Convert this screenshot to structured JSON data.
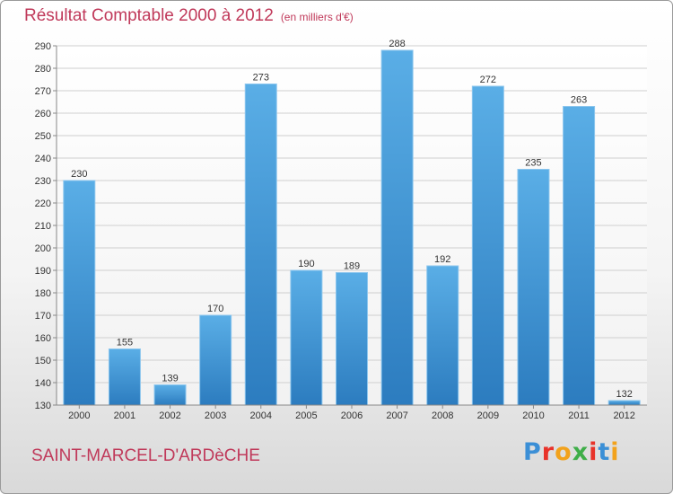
{
  "chart_data": {
    "type": "bar",
    "title": "Résultat Comptable 2000 à 2012",
    "subtitle": "(en milliers d'€)",
    "categories": [
      "2000",
      "2001",
      "2002",
      "2003",
      "2004",
      "2005",
      "2006",
      "2007",
      "2008",
      "2009",
      "2010",
      "2011",
      "2012"
    ],
    "values": [
      230,
      155,
      139,
      170,
      273,
      190,
      189,
      288,
      192,
      272,
      235,
      263,
      132
    ],
    "ylim": [
      130,
      290
    ],
    "yticks": [
      130,
      140,
      150,
      160,
      170,
      180,
      190,
      200,
      210,
      220,
      230,
      240,
      250,
      260,
      270,
      280,
      290
    ],
    "xlabel": "",
    "ylabel": "",
    "grid": true,
    "bar_color_top": "#5aaee6",
    "bar_color_bottom": "#2c7cbf"
  },
  "footer": {
    "commune": "SAINT-MARCEL-D'ARDèCHE",
    "logo_letters": [
      "P",
      "r",
      "o",
      "x",
      "i",
      "t",
      "i"
    ],
    "logo_colors": [
      "#3b8fd6",
      "#e8332a",
      "#f2a21c",
      "#3fae49",
      "#e8332a",
      "#3b8fd6",
      "#f2a21c"
    ]
  },
  "colors": {
    "accent": "#c0395a",
    "grid": "#cfcfcf"
  }
}
